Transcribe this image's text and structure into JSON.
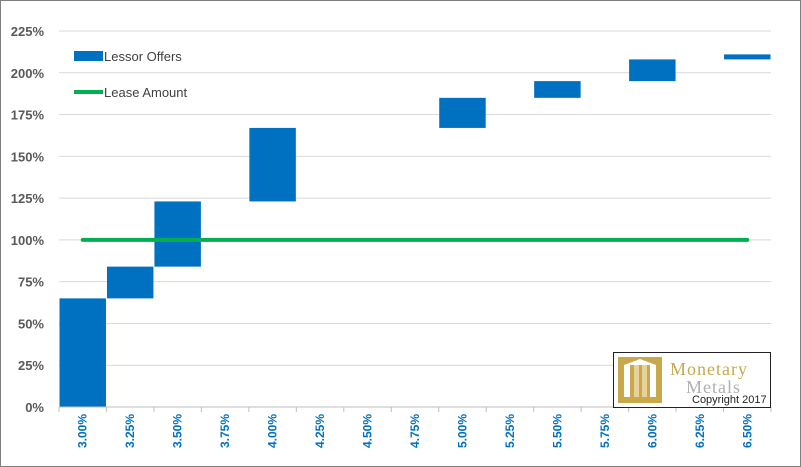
{
  "chart_data": {
    "type": "waterfall",
    "categories": [
      "3.00%",
      "3.25%",
      "3.50%",
      "3.75%",
      "4.00%",
      "4.25%",
      "4.50%",
      "4.75%",
      "5.00%",
      "5.25%",
      "5.50%",
      "5.75%",
      "6.00%",
      "6.25%",
      "6.50%"
    ],
    "series": [
      {
        "name": "Lessor Offers",
        "color": "#0070c0",
        "ranges": [
          [
            0,
            65
          ],
          [
            65,
            84
          ],
          [
            84,
            123
          ],
          null,
          [
            123,
            167
          ],
          null,
          null,
          null,
          [
            167,
            185
          ],
          null,
          [
            185,
            195
          ],
          null,
          [
            195,
            208
          ],
          null,
          [
            208,
            211
          ]
        ]
      },
      {
        "name": "Lease Amount",
        "color": "#00b050",
        "type": "line",
        "values": [
          100,
          100,
          100,
          100,
          100,
          100,
          100,
          100,
          100,
          100,
          100,
          100,
          100,
          100,
          100
        ]
      }
    ],
    "y_ticks": [
      "0%",
      "25%",
      "50%",
      "75%",
      "100%",
      "125%",
      "150%",
      "175%",
      "200%",
      "225%"
    ],
    "ylim": [
      0,
      225
    ],
    "grid": true,
    "legend_position": "top-left"
  },
  "logo": {
    "word1": "Monetary",
    "word2": "Metals",
    "copyright": "Copyright 2017"
  }
}
